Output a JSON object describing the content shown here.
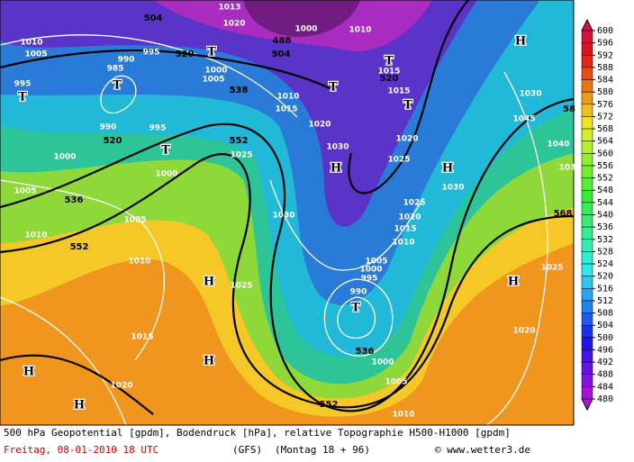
{
  "map": {
    "contour_labels": [
      "504",
      "1010",
      "1005",
      "990",
      "995",
      "520",
      "985",
      "995",
      "1000",
      "1005",
      "538",
      "1010",
      "1015",
      "1020",
      "990",
      "995",
      "520",
      "552",
      "1025",
      "1000",
      "1030",
      "1000",
      "1005",
      "536",
      "1030",
      "1005",
      "1010",
      "552",
      "1010",
      "1025",
      "1015",
      "1020",
      "552",
      "536",
      "990",
      "1000",
      "995",
      "1005",
      "1000",
      "1005",
      "1010",
      "1025",
      "1020",
      "1015",
      "1010",
      "1030",
      "1020",
      "1025",
      "1015",
      "520",
      "1015",
      "504",
      "488",
      "1013",
      "1020",
      "1010",
      "1000",
      "1045",
      "1040",
      "1030",
      "568",
      "1025",
      "1020",
      "103",
      "58"
    ],
    "pressure_centers": [
      "T",
      "T",
      "T",
      "T",
      "T",
      "T",
      "T",
      "H",
      "H",
      "H",
      "H",
      "H",
      "H",
      "H",
      "H",
      "T"
    ]
  },
  "colorbar": {
    "ticks": [
      600,
      596,
      592,
      588,
      584,
      580,
      576,
      572,
      568,
      564,
      560,
      556,
      552,
      548,
      544,
      540,
      536,
      532,
      528,
      524,
      520,
      516,
      512,
      508,
      504,
      500,
      496,
      492,
      488,
      484,
      480
    ]
  },
  "footer": {
    "description": "500 hPa Geopotential [gpdm], Bodendruck [hPa], relative Topographie H500-H1000 [gpdm]",
    "date": "Freitag, 08-01-2010  18 UTC",
    "model": "(GFS)",
    "run": "(Montag 18 + 96)",
    "credit": "© www.wetter3.de"
  }
}
